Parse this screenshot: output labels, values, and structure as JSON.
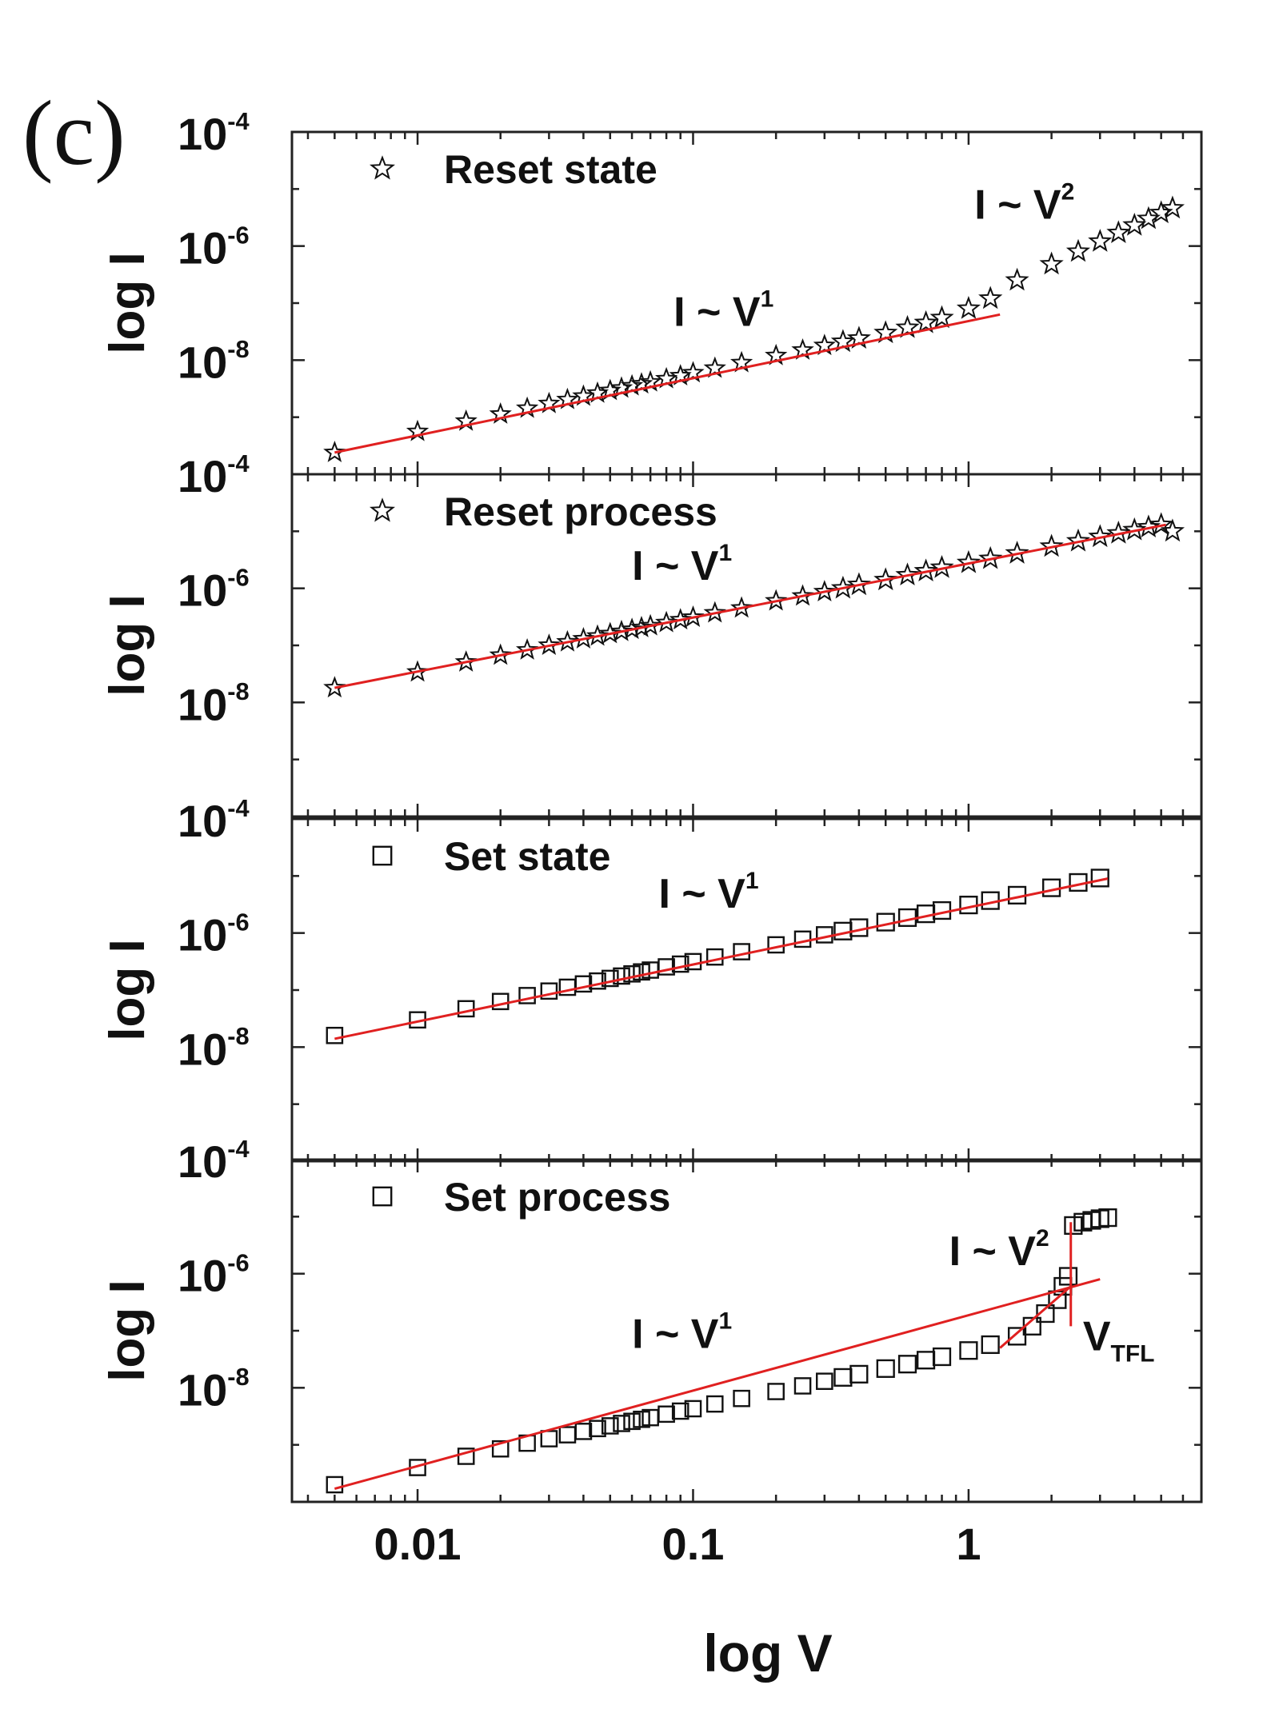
{
  "panel_label": "(c)",
  "colors": {
    "fit_line": "#e02020",
    "marker": "#111111",
    "axis": "#222222"
  },
  "chart_data": [
    {
      "type": "scatter",
      "legend": "Reset state",
      "marker": "star",
      "xlabel": "log V",
      "ylabel": "log I",
      "xscale": "log",
      "xlim": [
        0.0035,
        7
      ],
      "yscale": "log",
      "ylim": [
        1e-10,
        0.0001
      ],
      "ytick_labels": [
        "10",
        "10",
        "10"
      ],
      "ytick_exponents": [
        "-4",
        "-6",
        "-8"
      ],
      "ytick_values": [
        0.0001,
        1e-06,
        1e-08
      ],
      "points": {
        "x": [
          0.005,
          0.01,
          0.015,
          0.02,
          0.025,
          0.03,
          0.035,
          0.04,
          0.045,
          0.05,
          0.055,
          0.06,
          0.065,
          0.07,
          0.08,
          0.09,
          0.1,
          0.12,
          0.15,
          0.2,
          0.25,
          0.3,
          0.35,
          0.4,
          0.5,
          0.6,
          0.7,
          0.8,
          1.0,
          1.2,
          1.5,
          2.0,
          2.5,
          3.0,
          3.5,
          4.0,
          4.5,
          5.0,
          5.5
        ],
        "y": [
          2.4e-10,
          5.6e-10,
          8.5e-10,
          1.13e-09,
          1.43e-09,
          1.73e-09,
          2.03e-09,
          2.33e-09,
          2.63e-09,
          2.93e-09,
          3.23e-09,
          3.53e-09,
          3.83e-09,
          4.13e-09,
          4.7e-09,
          5.3e-09,
          6e-09,
          7.2e-09,
          9e-09,
          1.2e-08,
          1.5e-08,
          1.8e-08,
          2.1e-08,
          2.4e-08,
          3e-08,
          3.7e-08,
          4.5e-08,
          5.5e-08,
          8e-08,
          1.2e-07,
          2.5e-07,
          4.8e-07,
          8e-07,
          1.2e-06,
          1.7e-06,
          2.3e-06,
          3e-06,
          3.8e-06,
          4.6e-06
        ]
      },
      "fits": [
        {
          "label": "I ~ V",
          "exponent": "1",
          "x": [
            0.005,
            1.3
          ],
          "y": [
            2.4e-10,
            6.3e-08
          ]
        }
      ],
      "annotations": [
        {
          "label": "I ~ V",
          "exponent": "2",
          "x": 1.05,
          "y": 3e-06
        },
        {
          "label": "I ~ V",
          "exponent": "1",
          "x": 0.085,
          "y": 4e-08
        }
      ]
    },
    {
      "type": "scatter",
      "legend": "Reset process",
      "marker": "star",
      "xlabel": "log V",
      "ylabel": "log I",
      "xscale": "log",
      "xlim": [
        0.0035,
        7
      ],
      "yscale": "log",
      "ylim": [
        1e-10,
        0.0001
      ],
      "ytick_labels": [
        "10",
        "10",
        "10"
      ],
      "ytick_exponents": [
        "-4",
        "-6",
        "-8"
      ],
      "ytick_values": [
        0.0001,
        1e-06,
        1e-08
      ],
      "points": {
        "x": [
          0.005,
          0.01,
          0.015,
          0.02,
          0.025,
          0.03,
          0.035,
          0.04,
          0.045,
          0.05,
          0.055,
          0.06,
          0.065,
          0.07,
          0.08,
          0.09,
          0.1,
          0.12,
          0.15,
          0.2,
          0.25,
          0.3,
          0.35,
          0.4,
          0.5,
          0.6,
          0.7,
          0.8,
          1.0,
          1.2,
          1.5,
          2.0,
          2.5,
          3.0,
          3.5,
          4.0,
          4.5,
          5.0,
          5.5
        ],
        "y": [
          1.8e-08,
          3.4e-08,
          5.1e-08,
          6.7e-08,
          8.3e-08,
          1e-07,
          1.15e-07,
          1.3e-07,
          1.45e-07,
          1.6e-07,
          1.75e-07,
          1.9e-07,
          2.05e-07,
          2.2e-07,
          2.5e-07,
          2.8e-07,
          3.1e-07,
          3.7e-07,
          4.5e-07,
          6e-07,
          7.3e-07,
          8.7e-07,
          1e-06,
          1.15e-06,
          1.4e-06,
          1.7e-06,
          2e-06,
          2.3e-06,
          2.8e-06,
          3.3e-06,
          4.1e-06,
          5.4e-06,
          6.7e-06,
          8e-06,
          9.2e-06,
          1.05e-05,
          1.18e-05,
          1.3e-05,
          1e-05
        ]
      },
      "fits": [
        {
          "label": "I ~ V",
          "exponent": "1",
          "x": [
            0.005,
            5.2
          ],
          "y": [
            1.8e-08,
            1.3e-05
          ]
        }
      ],
      "annotations": [
        {
          "label": "I ~ V",
          "exponent": "1",
          "x": 0.06,
          "y": 1.4e-06
        }
      ]
    },
    {
      "type": "scatter",
      "legend": "Set state",
      "marker": "square",
      "xlabel": "log V",
      "ylabel": "log I",
      "xscale": "log",
      "xlim": [
        0.0035,
        7
      ],
      "yscale": "log",
      "ylim": [
        1e-10,
        0.0001
      ],
      "ytick_labels": [
        "10",
        "10",
        "10"
      ],
      "ytick_exponents": [
        "-4",
        "-6",
        "-8"
      ],
      "ytick_values": [
        0.0001,
        1e-06,
        1e-08
      ],
      "points": {
        "x": [
          0.005,
          0.01,
          0.015,
          0.02,
          0.025,
          0.03,
          0.035,
          0.04,
          0.045,
          0.05,
          0.055,
          0.06,
          0.065,
          0.07,
          0.08,
          0.09,
          0.1,
          0.12,
          0.15,
          0.2,
          0.25,
          0.3,
          0.35,
          0.4,
          0.5,
          0.6,
          0.7,
          0.8,
          1.0,
          1.2,
          1.5,
          2.0,
          2.5,
          3.0
        ],
        "y": [
          1.6e-08,
          3e-08,
          4.7e-08,
          6.3e-08,
          8e-08,
          9.6e-08,
          1.12e-07,
          1.28e-07,
          1.44e-07,
          1.6e-07,
          1.76e-07,
          1.92e-07,
          2.08e-07,
          2.24e-07,
          2.55e-07,
          2.85e-07,
          3.15e-07,
          3.8e-07,
          4.7e-07,
          6.2e-07,
          7.8e-07,
          9.3e-07,
          1.08e-06,
          1.24e-06,
          1.55e-06,
          1.86e-06,
          2.17e-06,
          2.48e-06,
          3.1e-06,
          3.7e-06,
          4.6e-06,
          6.2e-06,
          7.7e-06,
          9.2e-06
        ]
      },
      "fits": [
        {
          "label": "I ~ V",
          "exponent": "1",
          "x": [
            0.005,
            3.2
          ],
          "y": [
            1.4e-08,
            9e-06
          ]
        }
      ],
      "annotations": [
        {
          "label": "I ~ V",
          "exponent": "1",
          "x": 0.075,
          "y": 2.8e-06
        }
      ]
    },
    {
      "type": "scatter",
      "legend": "Set process",
      "marker": "square",
      "xlabel": "log V",
      "ylabel": "log I",
      "xscale": "log",
      "xlim": [
        0.0035,
        7
      ],
      "yscale": "log",
      "ylim": [
        1e-10,
        0.0001
      ],
      "xtick_labels": [
        "0.01",
        "0.1",
        "1"
      ],
      "xtick_values": [
        0.01,
        0.1,
        1
      ],
      "ytick_labels": [
        "10",
        "10",
        "10"
      ],
      "ytick_exponents": [
        "-4",
        "-6",
        "-8"
      ],
      "ytick_values": [
        0.0001,
        1e-06,
        1e-08
      ],
      "points": {
        "x": [
          0.005,
          0.01,
          0.015,
          0.02,
          0.025,
          0.03,
          0.035,
          0.04,
          0.045,
          0.05,
          0.055,
          0.06,
          0.065,
          0.07,
          0.08,
          0.09,
          0.1,
          0.12,
          0.15,
          0.2,
          0.25,
          0.3,
          0.35,
          0.4,
          0.5,
          0.6,
          0.7,
          0.8,
          1.0,
          1.2,
          1.5,
          1.7,
          1.9,
          2.1,
          2.2,
          2.3,
          2.4,
          2.6,
          2.8,
          3.0,
          3.2
        ],
        "y": [
          2e-10,
          4e-10,
          6.3e-10,
          8.5e-10,
          1.07e-09,
          1.28e-09,
          1.5e-09,
          1.72e-09,
          1.93e-09,
          2.15e-09,
          2.37e-09,
          2.58e-09,
          2.8e-09,
          3e-09,
          3.45e-09,
          3.9e-09,
          4.3e-09,
          5.2e-09,
          6.5e-09,
          8.6e-09,
          1.08e-08,
          1.3e-08,
          1.52e-08,
          1.73e-08,
          2.17e-08,
          2.6e-08,
          3.05e-08,
          3.5e-08,
          4.5e-08,
          5.7e-08,
          8e-08,
          1.2e-07,
          2e-07,
          3.5e-07,
          6e-07,
          9e-07,
          7e-06,
          8e-06,
          8.6e-06,
          9.2e-06,
          9.6e-06
        ]
      },
      "fits": [
        {
          "label": "I ~ V",
          "exponent": "1",
          "x": [
            0.005,
            3.0
          ],
          "y": [
            1.7e-10,
            8e-07
          ]
        },
        {
          "label": "I ~ V",
          "exponent": "2",
          "x": [
            1.3,
            2.35
          ],
          "y": [
            5e-08,
            6e-07
          ]
        },
        {
          "label": "V",
          "exponent": "TFL",
          "x": [
            2.35,
            2.35
          ],
          "y": [
            1.2e-07,
            8e-06
          ]
        }
      ],
      "annotations": [
        {
          "label": "I ~ V",
          "exponent": "2",
          "x": 0.85,
          "y": 1.4e-06
        },
        {
          "label": "I ~ V",
          "exponent": "1",
          "x": 0.06,
          "y": 5e-08
        },
        {
          "label": "V",
          "exponent": "TFL",
          "x": 2.6,
          "y": 4.5e-08
        }
      ]
    }
  ]
}
